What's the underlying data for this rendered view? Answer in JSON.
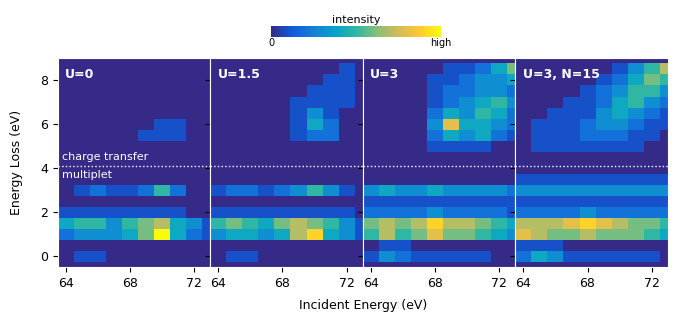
{
  "chart_data": {
    "type": "heatmap",
    "xlabel": "Incident Energy (eV)",
    "ylabel": "Energy Loss (eV)",
    "x": [
      64,
      65,
      66,
      67,
      68,
      69,
      70,
      71,
      72,
      73
    ],
    "y": [
      0,
      0.5,
      1,
      1.5,
      2,
      2.5,
      3,
      3.5,
      4,
      4.5,
      5,
      5.5,
      6,
      6.5,
      7,
      7.5,
      8,
      8.5
    ],
    "xlim": [
      63.5,
      73
    ],
    "ylim": [
      -0.5,
      9
    ],
    "xticks": [
      64,
      68,
      72
    ],
    "yticks": [
      0,
      2,
      4,
      6,
      8
    ],
    "colorbar": {
      "label": "intensity",
      "range": [
        0,
        10
      ],
      "ticks": [
        {
          "value": 0,
          "label": "0"
        },
        {
          "value": 10,
          "label": "high"
        }
      ]
    },
    "hlines": [
      4.1
    ],
    "annotations": [
      {
        "text": "charge transfer",
        "x": 63.8,
        "y": 4.3
      },
      {
        "text": "multiplet",
        "x": 63.8,
        "y": 3.9
      }
    ],
    "panels": [
      {
        "title": "U=0",
        "cells": [
          [
            0,
            1,
            1,
            0,
            0,
            0,
            0,
            0,
            0,
            0
          ],
          [
            0,
            0,
            0,
            0,
            0,
            0,
            0,
            0,
            0,
            0
          ],
          [
            2,
            3,
            3,
            3,
            4,
            6,
            10,
            4,
            2,
            1
          ],
          [
            4,
            5,
            5,
            3,
            5,
            6,
            7,
            4,
            3,
            1
          ],
          [
            1,
            1,
            1,
            1,
            1,
            1,
            1,
            1,
            0,
            0
          ],
          [
            0,
            0,
            0,
            0,
            0,
            0,
            0,
            0,
            0,
            0
          ],
          [
            0,
            1,
            2,
            1,
            1,
            2,
            5,
            2,
            0,
            0
          ],
          [
            0,
            0,
            0,
            0,
            0,
            0,
            0,
            0,
            0,
            0
          ],
          [
            0,
            0,
            0,
            0,
            0,
            0,
            0,
            0,
            0,
            0
          ],
          [
            0,
            0,
            0,
            0,
            0,
            0,
            0,
            0,
            0,
            0
          ],
          [
            0,
            0,
            0,
            0,
            0,
            0,
            0,
            0,
            0,
            0
          ],
          [
            0,
            0,
            0,
            0,
            0,
            1,
            1,
            1,
            0,
            0
          ],
          [
            0,
            0,
            0,
            0,
            0,
            0,
            1,
            1,
            0,
            0
          ],
          [
            0,
            0,
            0,
            0,
            0,
            0,
            0,
            0,
            0,
            0
          ],
          [
            0,
            0,
            0,
            0,
            0,
            0,
            0,
            0,
            0,
            0
          ],
          [
            0,
            0,
            0,
            0,
            0,
            0,
            0,
            0,
            0,
            0
          ],
          [
            0,
            0,
            0,
            0,
            0,
            0,
            0,
            0,
            0,
            0
          ],
          [
            0,
            0,
            0,
            0,
            0,
            0,
            0,
            0,
            0,
            0
          ]
        ]
      },
      {
        "title": "U=1.5",
        "cells": [
          [
            0,
            1,
            1,
            0,
            0,
            0,
            0,
            0,
            0,
            0
          ],
          [
            0,
            0,
            0,
            0,
            0,
            0,
            0,
            0,
            0,
            0
          ],
          [
            3,
            4,
            4,
            3,
            4,
            7,
            9,
            4,
            3,
            1
          ],
          [
            5,
            6,
            5,
            4,
            6,
            7,
            6,
            5,
            3,
            1
          ],
          [
            1,
            1,
            1,
            1,
            1,
            1,
            1,
            1,
            1,
            0
          ],
          [
            0,
            0,
            0,
            0,
            0,
            0,
            0,
            0,
            0,
            0
          ],
          [
            1,
            2,
            2,
            1,
            2,
            3,
            5,
            3,
            1,
            0
          ],
          [
            0,
            0,
            0,
            0,
            0,
            0,
            0,
            0,
            0,
            0
          ],
          [
            0,
            0,
            0,
            0,
            0,
            0,
            0,
            0,
            0,
            0
          ],
          [
            0,
            0,
            0,
            0,
            0,
            0,
            0,
            0,
            0,
            0
          ],
          [
            0,
            0,
            0,
            0,
            0,
            0,
            0,
            0,
            0,
            0
          ],
          [
            0,
            0,
            0,
            0,
            0,
            1,
            2,
            2,
            0,
            0
          ],
          [
            0,
            0,
            0,
            0,
            0,
            1,
            4,
            2,
            0,
            0
          ],
          [
            0,
            0,
            0,
            0,
            0,
            1,
            3,
            1,
            0,
            0
          ],
          [
            0,
            0,
            0,
            0,
            0,
            1,
            1,
            1,
            1,
            0
          ],
          [
            0,
            0,
            0,
            0,
            0,
            0,
            1,
            1,
            1,
            0
          ],
          [
            0,
            0,
            0,
            0,
            0,
            0,
            0,
            1,
            1,
            0
          ],
          [
            0,
            0,
            0,
            0,
            0,
            0,
            0,
            0,
            1,
            0
          ]
        ]
      },
      {
        "title": "U=3",
        "cells": [
          [
            1,
            3,
            2,
            1,
            1,
            1,
            1,
            1,
            0,
            0
          ],
          [
            0,
            1,
            1,
            0,
            0,
            0,
            0,
            0,
            0,
            0
          ],
          [
            5,
            7,
            5,
            6,
            8,
            6,
            6,
            5,
            4,
            3
          ],
          [
            6,
            7,
            6,
            7,
            9,
            7,
            7,
            6,
            5,
            4
          ],
          [
            2,
            2,
            2,
            2,
            3,
            2,
            2,
            2,
            2,
            1
          ],
          [
            1,
            1,
            1,
            1,
            1,
            1,
            1,
            1,
            1,
            1
          ],
          [
            3,
            4,
            3,
            3,
            4,
            3,
            3,
            3,
            3,
            2
          ],
          [
            0,
            0,
            0,
            0,
            0,
            0,
            0,
            0,
            0,
            0
          ],
          [
            0,
            0,
            0,
            0,
            0,
            0,
            0,
            0,
            0,
            0
          ],
          [
            0,
            0,
            0,
            0,
            0,
            0,
            0,
            0,
            0,
            0
          ],
          [
            0,
            0,
            0,
            0,
            1,
            1,
            1,
            1,
            0,
            0
          ],
          [
            0,
            0,
            0,
            0,
            2,
            4,
            3,
            4,
            2,
            1
          ],
          [
            0,
            0,
            0,
            0,
            3,
            8,
            4,
            4,
            3,
            2
          ],
          [
            0,
            0,
            0,
            0,
            2,
            4,
            3,
            5,
            4,
            2
          ],
          [
            0,
            0,
            0,
            0,
            1,
            2,
            3,
            4,
            5,
            3
          ],
          [
            0,
            0,
            0,
            0,
            1,
            2,
            2,
            3,
            3,
            2
          ],
          [
            0,
            0,
            0,
            0,
            1,
            1,
            2,
            3,
            3,
            4
          ],
          [
            0,
            0,
            0,
            0,
            0,
            1,
            1,
            2,
            4,
            6
          ]
        ]
      },
      {
        "title": "U=3, N=15",
        "cells": [
          [
            2,
            4,
            3,
            1,
            1,
            1,
            1,
            1,
            1,
            0
          ],
          [
            1,
            1,
            1,
            0,
            0,
            0,
            0,
            0,
            0,
            0
          ],
          [
            8,
            7,
            6,
            6,
            7,
            6,
            6,
            6,
            5,
            4
          ],
          [
            7,
            7,
            7,
            8,
            9,
            8,
            7,
            6,
            6,
            5
          ],
          [
            2,
            2,
            2,
            2,
            3,
            2,
            2,
            2,
            2,
            2
          ],
          [
            1,
            1,
            1,
            1,
            1,
            1,
            1,
            1,
            1,
            1
          ],
          [
            3,
            3,
            3,
            3,
            3,
            3,
            3,
            3,
            3,
            3
          ],
          [
            1,
            1,
            1,
            1,
            1,
            1,
            1,
            1,
            1,
            1
          ],
          [
            0,
            0,
            0,
            0,
            0,
            0,
            0,
            0,
            0,
            0
          ],
          [
            0,
            0,
            0,
            0,
            0,
            0,
            0,
            0,
            0,
            0
          ],
          [
            0,
            1,
            1,
            1,
            1,
            1,
            1,
            1,
            0,
            0
          ],
          [
            0,
            1,
            1,
            1,
            2,
            2,
            2,
            1,
            1,
            0
          ],
          [
            0,
            1,
            1,
            1,
            2,
            3,
            3,
            2,
            1,
            1
          ],
          [
            0,
            0,
            1,
            1,
            1,
            3,
            4,
            3,
            2,
            1
          ],
          [
            0,
            0,
            0,
            1,
            1,
            2,
            4,
            5,
            3,
            2
          ],
          [
            0,
            0,
            0,
            0,
            1,
            2,
            3,
            5,
            5,
            3
          ],
          [
            0,
            0,
            0,
            0,
            0,
            1,
            2,
            4,
            6,
            5
          ],
          [
            0,
            0,
            0,
            0,
            0,
            0,
            1,
            3,
            5,
            7
          ]
        ]
      }
    ]
  }
}
